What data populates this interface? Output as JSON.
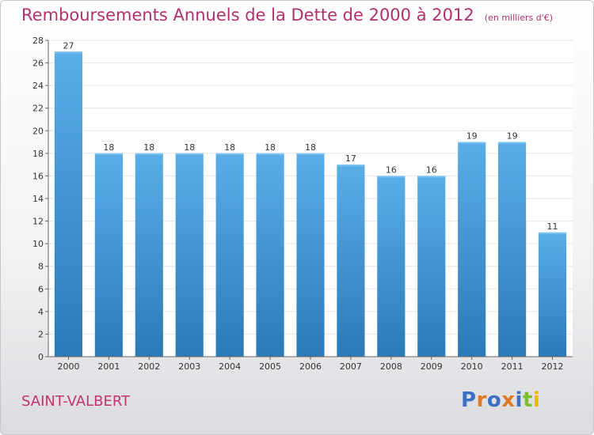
{
  "header": {
    "title": "Remboursements Annuels de la Dette de 2000 à 2012",
    "unit": "(en milliers d'€)"
  },
  "footer": {
    "commune": "SAINT-VALBERT",
    "logo": "Proxiti"
  },
  "colors": {
    "bar_light": "#5aaee8",
    "bar_dark": "#2a7ab8",
    "title": "#b0306e",
    "logo_letters": [
      "#3a6fc4",
      "#e07a20",
      "#3a6fc4",
      "#e07a20",
      "#3a6fc4",
      "#7bbf2a",
      "#e8b800"
    ]
  },
  "chart_data": {
    "type": "bar",
    "title": "Remboursements Annuels de la Dette de 2000 à 2012",
    "subtitle": "(en milliers d'€)",
    "categories": [
      "2000",
      "2001",
      "2002",
      "2003",
      "2004",
      "2005",
      "2006",
      "2007",
      "2008",
      "2009",
      "2010",
      "2011",
      "2012"
    ],
    "values": [
      27,
      18,
      18,
      18,
      18,
      18,
      18,
      17,
      16,
      16,
      19,
      19,
      11
    ],
    "xlabel": "",
    "ylabel": "",
    "ylim": [
      0,
      28
    ],
    "yticks": [
      0,
      2,
      4,
      6,
      8,
      10,
      12,
      14,
      16,
      18,
      20,
      22,
      24,
      26,
      28
    ],
    "grid": true,
    "legend": "none"
  }
}
